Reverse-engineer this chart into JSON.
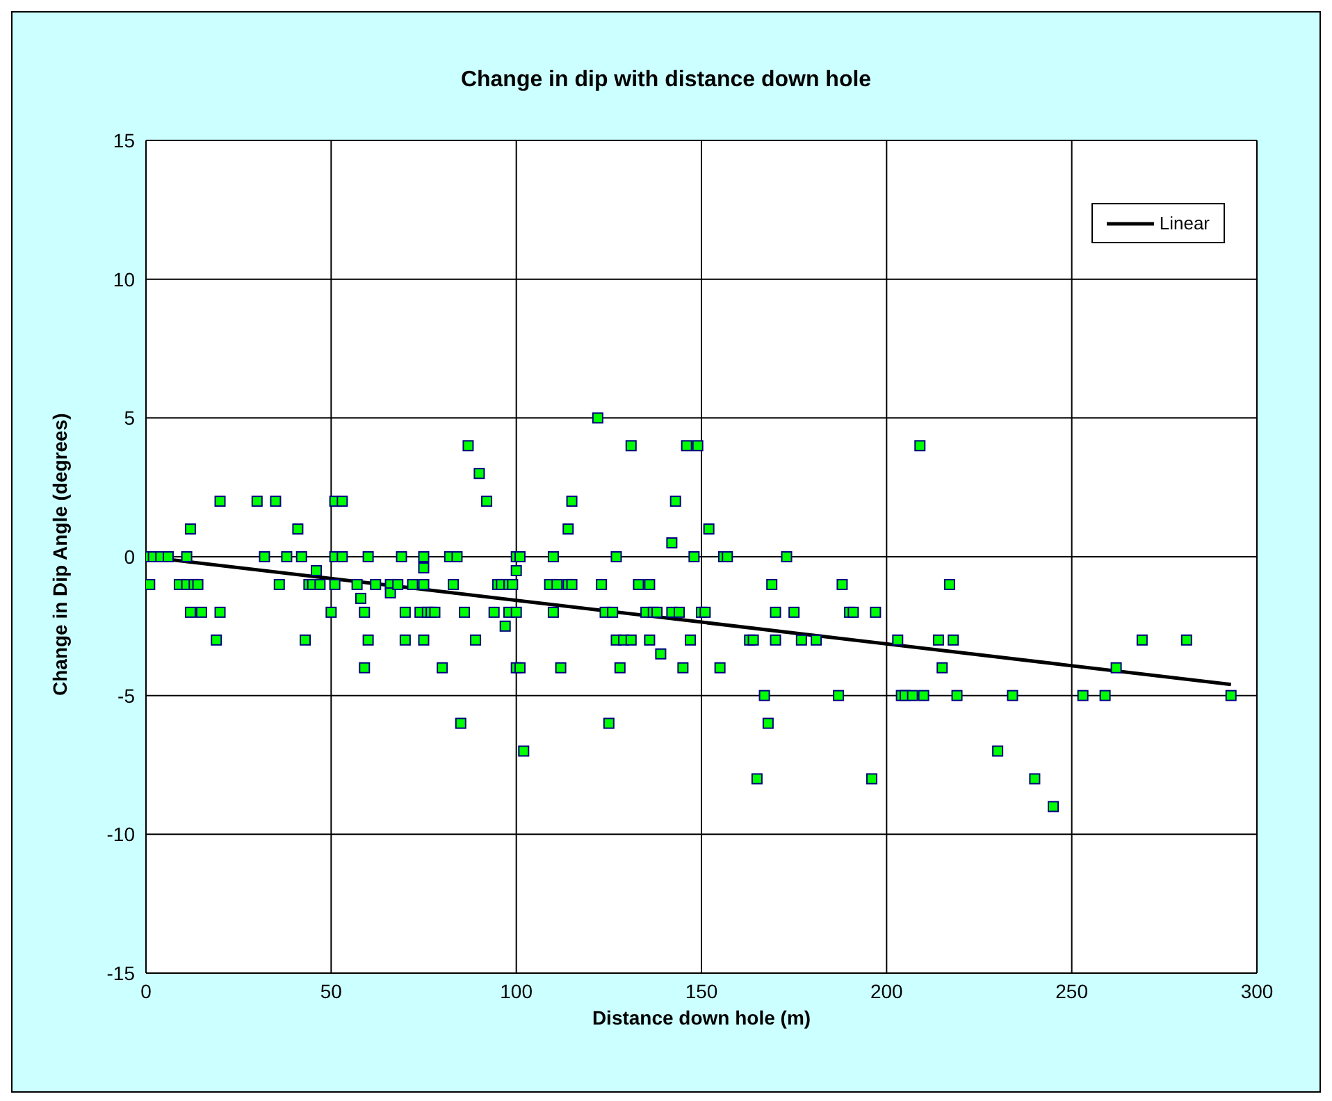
{
  "chart_data": {
    "type": "scatter",
    "title": "Change in dip with distance down hole",
    "xlabel": "Distance down hole (m)",
    "ylabel": "Change in Dip Angle (degrees)",
    "xlim": [
      0,
      300
    ],
    "xticks": [
      0,
      50,
      100,
      150,
      200,
      250,
      300
    ],
    "ylim": [
      -15,
      15
    ],
    "yticks": [
      -15,
      -10,
      -5,
      0,
      5,
      10,
      15
    ],
    "grid": true,
    "legend": "top right",
    "marker": "square",
    "series": [
      {
        "color": "#00ff00",
        "x": [
          0,
          1,
          2,
          4,
          6,
          9,
          11,
          11,
          12,
          12,
          13,
          14,
          15,
          19,
          20,
          20,
          30,
          32,
          35,
          36,
          38,
          41,
          42,
          43,
          44,
          45,
          46,
          47,
          50,
          51,
          51,
          51,
          53,
          53,
          57,
          58,
          59,
          59,
          60,
          60,
          62,
          66,
          66,
          68,
          69,
          70,
          70,
          72,
          74,
          75,
          75,
          75,
          75,
          76,
          77,
          78,
          80,
          82,
          83,
          84,
          85,
          86,
          87,
          89,
          90,
          92,
          94,
          95,
          96,
          97,
          98,
          98,
          99,
          100,
          100,
          100,
          100,
          101,
          101,
          102,
          109,
          110,
          110,
          111,
          112,
          114,
          114,
          115,
          115,
          122,
          123,
          124,
          125,
          126,
          127,
          127,
          128,
          129,
          131,
          131,
          133,
          135,
          136,
          136,
          137,
          138,
          139,
          142,
          142,
          143,
          144,
          145,
          146,
          147,
          148,
          149,
          150,
          151,
          152,
          155,
          156,
          157,
          163,
          164,
          165,
          167,
          168,
          169,
          170,
          170,
          173,
          175,
          177,
          181,
          187,
          188,
          190,
          191,
          196,
          197,
          203,
          204,
          205,
          207,
          209,
          210,
          214,
          215,
          217,
          218,
          219,
          230,
          234,
          240,
          245,
          253,
          259,
          262,
          269,
          281,
          293
        ],
        "values": [
          0,
          -1,
          0,
          0,
          0,
          -1,
          0,
          -1,
          1,
          -2,
          -1,
          -1,
          -2,
          -3,
          2,
          -2,
          2,
          0,
          2,
          -1,
          0,
          1,
          0,
          -3,
          -1,
          -1,
          -0.5,
          -1,
          -2,
          0,
          -1,
          2,
          2,
          0,
          -1,
          -1.5,
          -4,
          -2,
          0,
          -3,
          -1,
          -1,
          -1.3,
          -1,
          0,
          -2,
          -3,
          -1,
          -2,
          -1,
          0,
          -0.4,
          -3,
          -2,
          -2,
          -2,
          -4,
          0,
          -1,
          0,
          -6,
          -2,
          4,
          -3,
          3,
          2,
          -2,
          -1,
          -1,
          -2.5,
          -1,
          -2,
          -1,
          0,
          -0.5,
          -2,
          -4,
          0,
          -4,
          -7,
          -1,
          0,
          -2,
          -1,
          -4,
          1,
          -1,
          2,
          -1,
          5,
          -1,
          -2,
          -6,
          -2,
          -3,
          0,
          -4,
          -3,
          4,
          -3,
          -1,
          -2,
          -3,
          -1,
          -2,
          -2,
          -3.5,
          0.5,
          -2,
          2,
          -2,
          -4,
          4,
          -3,
          0,
          4,
          -2,
          -2,
          1,
          -4,
          0,
          0,
          -3,
          -3,
          -8,
          -5,
          -6,
          -1,
          -2,
          -3,
          0,
          -2,
          -3,
          -3,
          -5,
          -1,
          -2,
          -2,
          -8,
          -2,
          -3,
          -5,
          -5,
          -5,
          4,
          -5,
          -3,
          -4,
          -1,
          -3,
          -5,
          -7,
          -5,
          -8,
          -9,
          -5,
          -5,
          -4,
          -3,
          -3,
          -5
        ]
      },
      {
        "type": "line",
        "name": "Linear",
        "color": "#000000",
        "marker": "none",
        "x": [
          0,
          293
        ],
        "values": [
          0,
          -4.6
        ]
      }
    ]
  }
}
